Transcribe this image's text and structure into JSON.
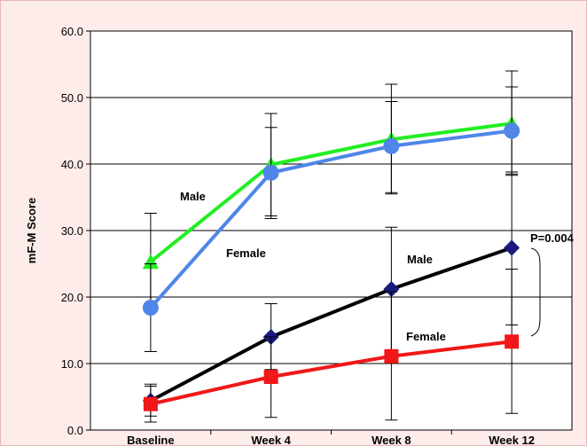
{
  "chart_data": {
    "type": "line",
    "title": "",
    "xlabel": "",
    "ylabel": "mF-M Score",
    "ylim": [
      0,
      60
    ],
    "y_ticks": [
      "0.0",
      "10.0",
      "20.0",
      "30.0",
      "40.0",
      "50.0",
      "60.0"
    ],
    "categories": [
      "Baseline",
      "Week 4",
      "Week 8",
      "Week 12"
    ],
    "grid": "horizontal",
    "legend": "none",
    "series": [
      {
        "color": "#22ee22",
        "marker": "triangle",
        "values": [
          25.3,
          39.9,
          43.7,
          46.1
        ],
        "err_low": [
          18.3,
          32.2,
          35.7,
          38.5
        ],
        "err_high": [
          32.6,
          47.6,
          52.0,
          54.0
        ]
      },
      {
        "color": "#4f86e8",
        "marker": "circle",
        "values": [
          18.4,
          38.7,
          42.7,
          45.0
        ],
        "err_low": [
          11.8,
          31.8,
          35.5,
          38.3
        ],
        "err_high": [
          25.0,
          45.5,
          49.4,
          51.6
        ]
      },
      {
        "color": "#000000",
        "marker": "diamond",
        "markerColor": "#1a1a7e",
        "values": [
          4.4,
          14.0,
          21.2,
          27.4
        ],
        "err_low": [
          2.1,
          9.1,
          12.0,
          15.8
        ],
        "err_high": [
          6.6,
          19.0,
          30.5,
          38.8
        ]
      },
      {
        "color": "#f01818",
        "marker": "square",
        "values": [
          3.9,
          8.0,
          11.1,
          13.3
        ],
        "err_low": [
          1.2,
          1.9,
          1.5,
          2.5
        ],
        "err_high": [
          6.9,
          14.0,
          20.8,
          24.2
        ]
      }
    ],
    "annotations": {
      "male_upper": "Male",
      "female_upper": "Female",
      "male_lower": "Male",
      "female_lower": "Female",
      "pvalue": "P=0.004"
    }
  }
}
